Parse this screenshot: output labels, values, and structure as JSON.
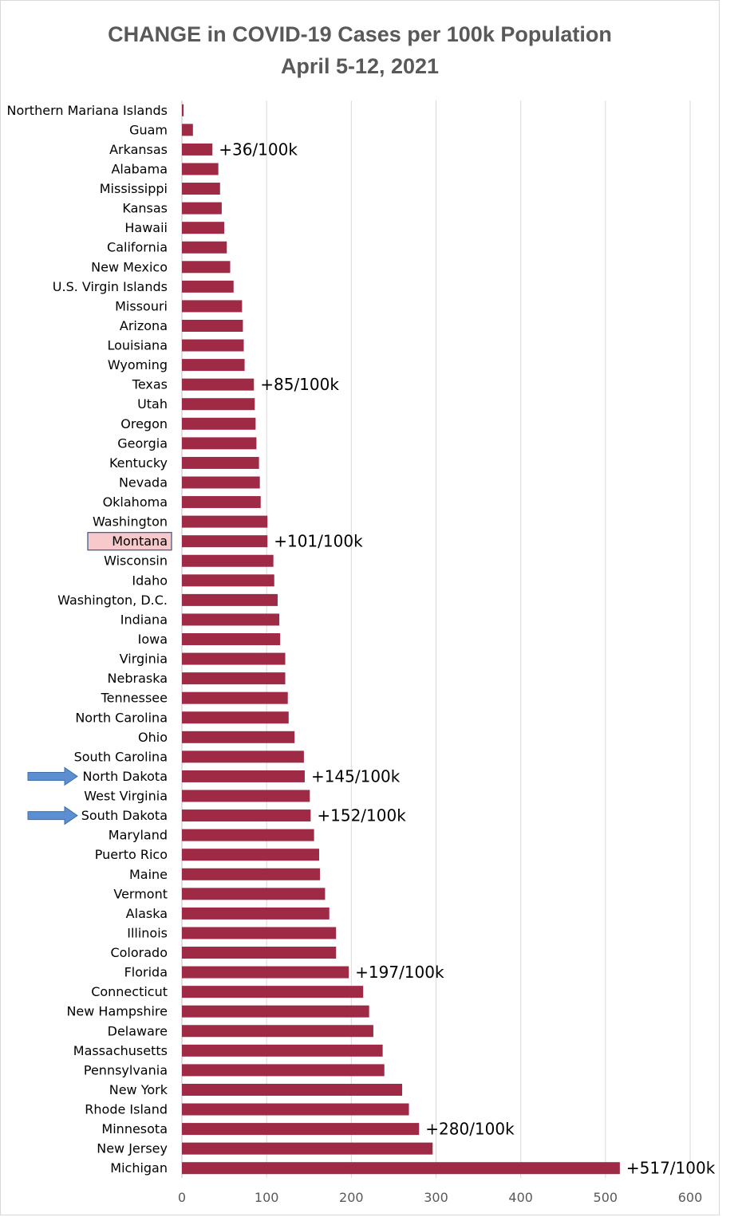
{
  "chart_data": {
    "type": "bar",
    "orientation": "horizontal",
    "title": "CHANGE in COVID-19 Cases per 100k Population",
    "subtitle": "April 5-12, 2021",
    "xlim": [
      0,
      600
    ],
    "xticks": [
      "0",
      "100",
      "200",
      "300",
      "400",
      "500",
      "600"
    ],
    "grid": true,
    "bar_color": "#9e2a45",
    "highlight": {
      "category": "Montana",
      "fill": "#f8c9cb",
      "border": "#3f5f8f"
    },
    "arrows": {
      "categories": [
        "North Dakota",
        "South Dakota"
      ],
      "color": "#5b8fd1"
    },
    "categories": [
      "Northern Mariana Islands",
      "Guam",
      "Arkansas",
      "Alabama",
      "Mississippi",
      "Kansas",
      "Hawaii",
      "California",
      "New Mexico",
      "U.S. Virgin Islands",
      "Missouri",
      "Arizona",
      "Louisiana",
      "Wyoming",
      "Texas",
      "Utah",
      "Oregon",
      "Georgia",
      "Kentucky",
      "Nevada",
      "Oklahoma",
      "Washington",
      "Montana",
      "Wisconsin",
      "Idaho",
      "Washington, D.C.",
      "Indiana",
      "Iowa",
      "Virginia",
      "Nebraska",
      "Tennessee",
      "North Carolina",
      "Ohio",
      "South Carolina",
      "North Dakota",
      "West Virginia",
      "South Dakota",
      "Maryland",
      "Puerto Rico",
      "Maine",
      "Vermont",
      "Alaska",
      "Illinois",
      "Colorado",
      "Florida",
      "Connecticut",
      "New Hampshire",
      "Delaware",
      "Massachusetts",
      "Pennsylvania",
      "New York",
      "Rhode Island",
      "Minnesota",
      "New Jersey",
      "Michigan"
    ],
    "values": [
      2,
      13,
      36,
      43,
      45,
      47,
      50,
      53,
      57,
      61,
      71,
      72,
      73,
      74,
      85,
      86,
      87,
      88,
      91,
      92,
      93,
      101,
      101,
      108,
      109,
      113,
      115,
      116,
      122,
      122,
      125,
      126,
      133,
      144,
      145,
      151,
      152,
      156,
      162,
      163,
      169,
      174,
      182,
      182,
      197,
      214,
      221,
      226,
      237,
      239,
      260,
      268,
      280,
      296,
      517
    ],
    "annotations": [
      {
        "category": "Arkansas",
        "text": "+36/100k"
      },
      {
        "category": "Texas",
        "text": "+85/100k"
      },
      {
        "category": "Montana",
        "text": "+101/100k"
      },
      {
        "category": "North Dakota",
        "text": "+145/100k"
      },
      {
        "category": "South Dakota",
        "text": "+152/100k"
      },
      {
        "category": "Florida",
        "text": "+197/100k"
      },
      {
        "category": "Minnesota",
        "text": "+280/100k"
      },
      {
        "category": "Michigan",
        "text": "+517/100k"
      }
    ]
  }
}
